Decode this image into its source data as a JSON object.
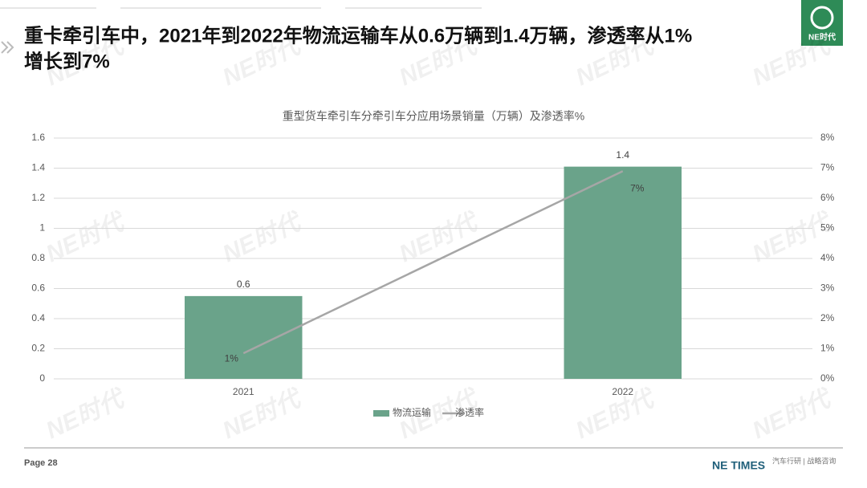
{
  "header": {
    "title_line1": "重卡牵引车中，2021年到2022年物流运输车从0.6万辆到1.4万辆，渗透率从1%",
    "title_line2": "增长到7%",
    "logo": "NE时代"
  },
  "watermark": "NE时代",
  "footer": {
    "page": "Page 28",
    "brand": "NE TIMES",
    "tagline": "汽车行研 | 战略咨询"
  },
  "chart_data": {
    "type": "bar",
    "title": "重型货车牵引车分牵引车分应用场景销量（万辆）及渗透率%",
    "categories": [
      "2021",
      "2022"
    ],
    "series": [
      {
        "name": "物流运输",
        "type": "bar",
        "color": "#6aa38a",
        "values": [
          0.55,
          1.41
        ],
        "value_labels": [
          "0.6",
          "1.4"
        ]
      },
      {
        "name": "渗透率",
        "type": "line",
        "axis": "y2",
        "color": "#a6a6a6",
        "values": [
          0.85,
          6.9
        ],
        "value_labels": [
          "1%",
          "7%"
        ]
      }
    ],
    "ylim": [
      0,
      1.6
    ],
    "yticks": [
      0,
      0.2,
      0.4,
      0.6,
      0.8,
      1,
      1.2,
      1.4,
      1.6
    ],
    "y2lim": [
      0,
      8
    ],
    "y2ticks": [
      {
        "value": 0,
        "label": "0%"
      },
      {
        "value": 1,
        "label": "1%"
      },
      {
        "value": 2,
        "label": "2%"
      },
      {
        "value": 3,
        "label": "3%"
      },
      {
        "value": 4,
        "label": "4%"
      },
      {
        "value": 5,
        "label": "5%"
      },
      {
        "value": 6,
        "label": "6%"
      },
      {
        "value": 7,
        "label": "7%"
      },
      {
        "value": 8,
        "label": "8%"
      }
    ],
    "grid": true,
    "legend": "bottom"
  }
}
